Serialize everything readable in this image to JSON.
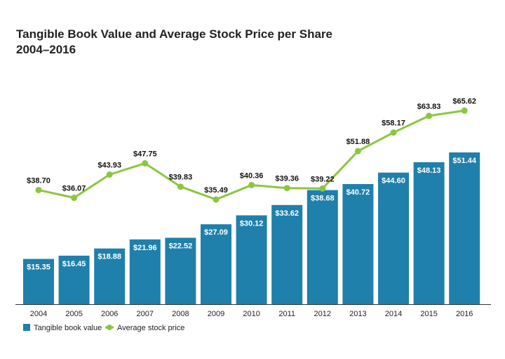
{
  "chart_data": {
    "type": "bar",
    "title": "Tangible Book Value and Average Stock Price per Share",
    "subtitle": "2004–2016",
    "categories": [
      "2004",
      "2005",
      "2006",
      "2007",
      "2008",
      "2009",
      "2010",
      "2011",
      "2012",
      "2013",
      "2014",
      "2015",
      "2016"
    ],
    "series": [
      {
        "name": "Tangible book value",
        "type": "bar",
        "color": "#1f80ab",
        "values": [
          15.35,
          16.45,
          18.88,
          21.96,
          22.52,
          27.09,
          30.12,
          33.62,
          38.68,
          40.72,
          44.6,
          48.13,
          51.44
        ],
        "labels": [
          "$15.35",
          "$16.45",
          "$18.88",
          "$21.96",
          "$22.52",
          "$27.09",
          "$30.12",
          "$33.62",
          "$38.68",
          "$40.72",
          "$44.60",
          "$48.13",
          "$51.44"
        ]
      },
      {
        "name": "Average stock price",
        "type": "line",
        "color": "#8cc63f",
        "values": [
          38.7,
          36.07,
          43.93,
          47.75,
          39.83,
          35.49,
          40.36,
          39.36,
          39.22,
          51.88,
          58.17,
          63.83,
          65.62
        ],
        "labels": [
          "$38.70",
          "$36.07",
          "$43.93",
          "$47.75",
          "$39.83",
          "$35.49",
          "$40.36",
          "$39.36",
          "$39.22",
          "$51.88",
          "$58.17",
          "$63.83",
          "$65.62"
        ]
      }
    ],
    "legend": "bottom-left",
    "grid": false
  }
}
